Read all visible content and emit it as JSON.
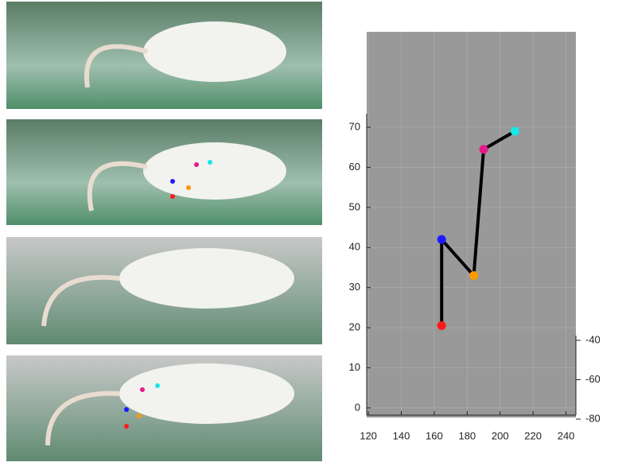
{
  "chart_data": {
    "type": "line",
    "x": [
      164.5,
      164.5,
      184,
      190,
      209
    ],
    "values": [
      20.5,
      42,
      33,
      64.5,
      69
    ],
    "colors": [
      "#ff1a1a",
      "#1a1aff",
      "#ff9900",
      "#e6198c",
      "#19e6e6"
    ],
    "line_color": "#000000",
    "xlim": [
      119,
      246
    ],
    "xticks": [
      120,
      140,
      160,
      180,
      200,
      220,
      240
    ],
    "ylim": [
      -2.4,
      93.8
    ],
    "yticks": [
      0,
      10,
      20,
      30,
      40,
      50,
      60,
      70
    ],
    "zlim": [
      -80,
      -37.6
    ],
    "zticks": [
      -40,
      -60,
      -80
    ],
    "grid": true
  }
}
